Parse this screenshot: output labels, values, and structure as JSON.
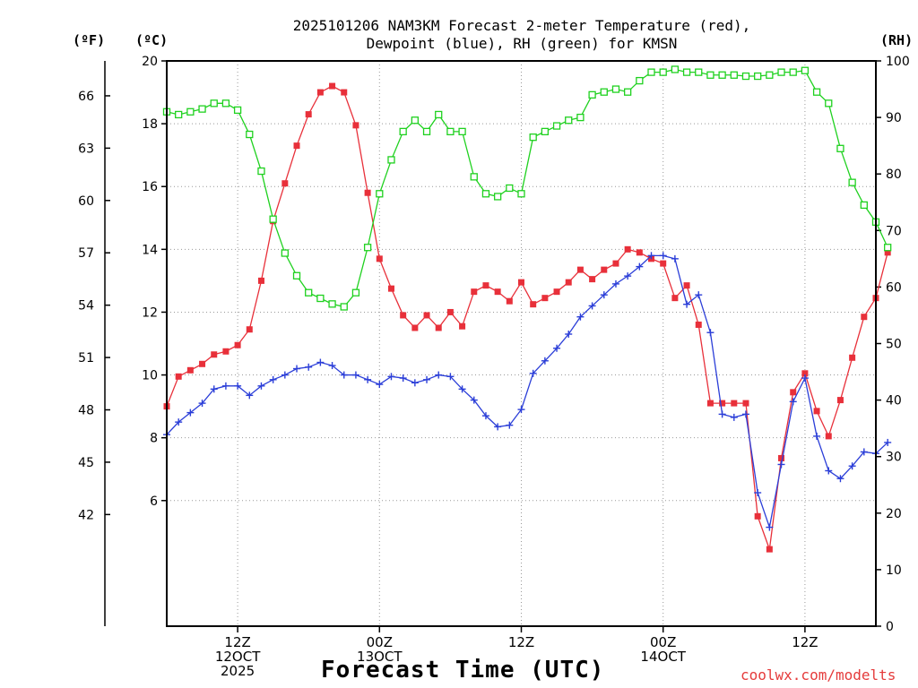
{
  "chart_data": {
    "type": "line",
    "title": "2025101206 NAM3KM Forecast 2-meter Temperature (red),",
    "subtitle": "Dewpoint (blue), RH (green) for KMSN",
    "xlabel": "Forecast Time (UTC)",
    "units": {
      "fahrenheit": "(ºF)",
      "celsius": "(ºC)",
      "rh": "(RH)"
    },
    "credit": "coolwx.com/modelts",
    "x_hours_range": [
      0,
      60
    ],
    "ylim_c": [
      2,
      20
    ],
    "ylim_rh": [
      0,
      100
    ],
    "yticks_c": [
      6,
      8,
      10,
      12,
      14,
      16,
      18,
      20
    ],
    "yticks_f": [
      42,
      45,
      48,
      51,
      54,
      57,
      60,
      63,
      66
    ],
    "yticks_rh": [
      0,
      10,
      20,
      30,
      40,
      50,
      60,
      70,
      80,
      90,
      100
    ],
    "xticks": [
      {
        "hour": 6,
        "lines": [
          "12Z",
          "12OCT",
          "2025"
        ]
      },
      {
        "hour": 18,
        "lines": [
          "00Z",
          "13OCT"
        ]
      },
      {
        "hour": 30,
        "lines": [
          "12Z"
        ]
      },
      {
        "hour": 42,
        "lines": [
          "00Z",
          "14OCT"
        ]
      },
      {
        "hour": 54,
        "lines": [
          "12Z"
        ]
      }
    ],
    "series": [
      {
        "name": "Temperature",
        "color": "#e8303a",
        "marker": "filled-square",
        "values": [
          9.0,
          9.95,
          10.15,
          10.35,
          10.65,
          10.75,
          10.95,
          11.45,
          13.0,
          14.9,
          16.1,
          17.3,
          18.3,
          19.0,
          19.2,
          19.0,
          17.95,
          15.8,
          13.7,
          12.75,
          11.9,
          11.5,
          11.9,
          11.5,
          12.0,
          11.55,
          12.65,
          12.85,
          12.65,
          12.35,
          12.95,
          12.25,
          12.45,
          12.65,
          12.95,
          13.35,
          13.05,
          13.35,
          13.55,
          14.0,
          13.9,
          13.7,
          13.55,
          12.45,
          12.85,
          11.6,
          9.1,
          9.1,
          9.1,
          9.1,
          5.5,
          4.45,
          7.35,
          9.45,
          10.05,
          8.85,
          8.05,
          9.2,
          10.55,
          11.85,
          12.45,
          13.9
        ]
      },
      {
        "name": "Dewpoint",
        "color": "#2b3ed8",
        "marker": "plus",
        "values": [
          8.1,
          8.5,
          8.8,
          9.1,
          9.55,
          9.65,
          9.65,
          9.35,
          9.65,
          9.85,
          10.0,
          10.2,
          10.25,
          10.4,
          10.3,
          10.0,
          10.0,
          9.85,
          9.7,
          9.95,
          9.9,
          9.75,
          9.85,
          10.0,
          9.95,
          9.55,
          9.2,
          8.7,
          8.35,
          8.4,
          8.9,
          10.05,
          10.45,
          10.85,
          11.3,
          11.85,
          12.2,
          12.55,
          12.9,
          13.15,
          13.45,
          13.8,
          13.8,
          13.7,
          12.25,
          12.55,
          11.35,
          8.75,
          8.65,
          8.75,
          6.25,
          5.15,
          7.15,
          9.15,
          9.9,
          8.05,
          6.95,
          6.7,
          7.1,
          7.55,
          7.5,
          7.85
        ]
      },
      {
        "name": "RH",
        "color": "#1fd11f",
        "marker": "open-square",
        "values": [
          91,
          90.5,
          91,
          91.5,
          92.5,
          92.5,
          91.3,
          87,
          80.5,
          72,
          66,
          62,
          59,
          58,
          57,
          56.5,
          59,
          67,
          76.5,
          82.5,
          87.5,
          89.5,
          87.5,
          90.5,
          87.5,
          87.5,
          79.5,
          76.5,
          76,
          77.5,
          76.5,
          86.5,
          87.5,
          88.5,
          89.5,
          90,
          94,
          94.5,
          95,
          94.5,
          96.5,
          98,
          98,
          98.5,
          98,
          98,
          97.5,
          97.5,
          97.5,
          97.3,
          97.3,
          97.5,
          98,
          98,
          98.3,
          94.5,
          92.5,
          84.5,
          78.5,
          74.5,
          71.5,
          67
        ]
      }
    ]
  }
}
